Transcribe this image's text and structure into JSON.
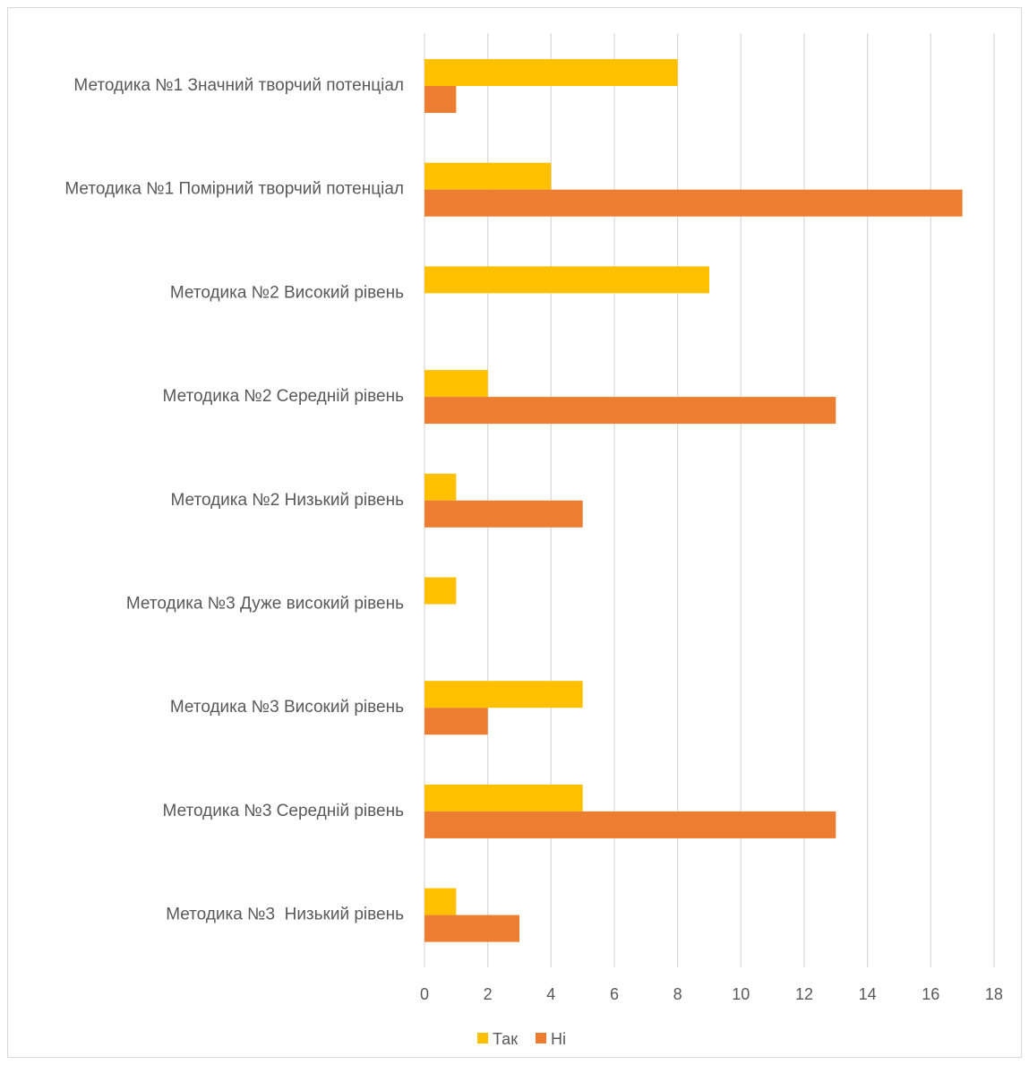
{
  "chart_data": {
    "type": "bar",
    "orientation": "horizontal",
    "categories": [
      "Методика №1 Значний творчий потенціал",
      "Методика №1 Помірний творчий потенціал",
      "Методика №2 Високий рівень",
      "Методика №2 Середній рівень",
      "Методика №2 Низький рівень",
      "Методика №3 Дуже високий рівень",
      "Методика №3 Високий рівень",
      "Методика №3 Середній рівень",
      "Методика №3  Низький рівень"
    ],
    "series": [
      {
        "name": "Так",
        "color": "#FFC000",
        "values": [
          8,
          4,
          9,
          2,
          1,
          1,
          5,
          5,
          1
        ]
      },
      {
        "name": "Ні",
        "color": "#ED7D31",
        "values": [
          1,
          17,
          0,
          13,
          5,
          0,
          2,
          13,
          3
        ]
      }
    ],
    "xlim": [
      0,
      18
    ],
    "xticks": [
      "0",
      "2",
      "4",
      "6",
      "8",
      "10",
      "12",
      "14",
      "16",
      "18"
    ],
    "grid": true,
    "legend_position": "bottom",
    "title": "",
    "xlabel": "",
    "ylabel": ""
  }
}
